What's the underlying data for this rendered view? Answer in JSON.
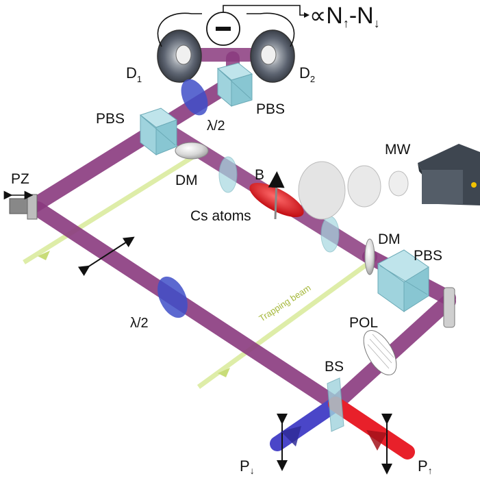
{
  "labels": {
    "output": "∝N",
    "output_sub1": "↑",
    "output_mid": "-N",
    "output_sub2": "↓",
    "minus": "−",
    "d1": "D",
    "d1_sub": "1",
    "d2": "D",
    "d2_sub": "2",
    "pbs_top": "PBS",
    "pbs_left": "PBS",
    "pbs_right": "PBS",
    "lambda_top": "λ/2",
    "lambda_left": "λ/2",
    "mw": "MW",
    "pz": "PZ",
    "dm_left": "DM",
    "dm_right": "DM",
    "b": "B",
    "cs_atoms": "Cs atoms",
    "trapping_beam": "Trapping beam",
    "pol": "POL",
    "bs": "BS",
    "p_down": "P",
    "p_down_sub": "↓",
    "p_up": "P",
    "p_up_sub": "↑"
  },
  "colors": {
    "beam": "#8a3a7e",
    "trap": "#d6e88a",
    "cube": "#9fd3dd",
    "waveplate": "#3f4fc8",
    "atoms": "#e3151b",
    "beam_red": "#e8202a",
    "beam_blue": "#4a46c8"
  }
}
